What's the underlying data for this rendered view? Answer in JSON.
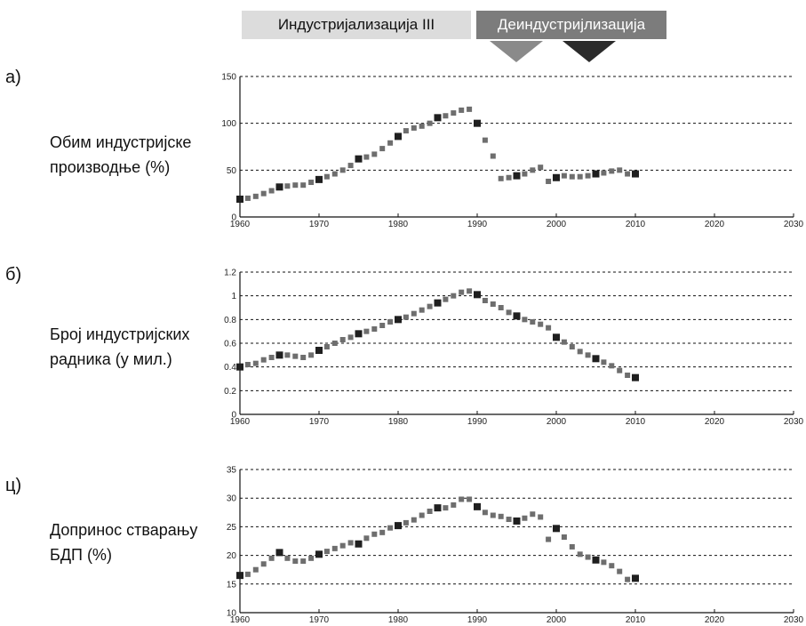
{
  "periods": [
    {
      "label": "Индустријализација III"
    },
    {
      "label": "Деиндустријлизација"
    }
  ],
  "rows": [
    {
      "letter": "а)",
      "line1": "Обим индустријске",
      "line2": "производње (%)"
    },
    {
      "letter": "б)",
      "line1": "Број индустријских",
      "line2": "радника (у мил.)"
    },
    {
      "letter": "ц)",
      "line1": "Допринос стварању",
      "line2": "БДП (%)"
    }
  ],
  "chart_data": [
    {
      "type": "scatter",
      "title": "Обим индустријске производње (%)",
      "xlabel": "",
      "ylabel": "",
      "xlim": [
        1960,
        2030
      ],
      "ylim": [
        0,
        150
      ],
      "xticks": [
        1960,
        1970,
        1980,
        1990,
        2000,
        2010,
        2020,
        2030
      ],
      "yticks": [
        0,
        50,
        100,
        150
      ],
      "grid": true,
      "x": [
        1960,
        1961,
        1962,
        1963,
        1964,
        1965,
        1966,
        1967,
        1968,
        1969,
        1970,
        1971,
        1972,
        1973,
        1974,
        1975,
        1976,
        1977,
        1978,
        1979,
        1980,
        1981,
        1982,
        1983,
        1984,
        1985,
        1986,
        1987,
        1988,
        1989,
        1990,
        1991,
        1992,
        1993,
        1994,
        1995,
        1996,
        1997,
        1998,
        1999,
        2000,
        2001,
        2002,
        2003,
        2004,
        2005,
        2006,
        2007,
        2008,
        2009,
        2010
      ],
      "y": [
        19,
        20,
        22,
        25,
        28,
        32,
        33,
        34,
        34,
        37,
        40,
        43,
        46,
        50,
        55,
        62,
        64,
        67,
        73,
        79,
        86,
        92,
        95,
        97,
        100,
        106,
        108,
        111,
        114,
        115,
        100,
        82,
        65,
        41,
        42,
        44,
        46,
        50,
        53,
        38,
        42,
        44,
        43,
        43,
        44,
        46,
        47,
        49,
        50,
        46,
        46
      ]
    },
    {
      "type": "scatter",
      "title": "Број индустријских радника (у мил.)",
      "xlabel": "",
      "ylabel": "",
      "xlim": [
        1960,
        2030
      ],
      "ylim": [
        0,
        1.2
      ],
      "xticks": [
        1960,
        1970,
        1980,
        1990,
        2000,
        2010,
        2020,
        2030
      ],
      "yticks": [
        0,
        0.2,
        0.4,
        0.6,
        0.8,
        1,
        1.2
      ],
      "grid": true,
      "x": [
        1960,
        1961,
        1962,
        1963,
        1964,
        1965,
        1966,
        1967,
        1968,
        1969,
        1970,
        1971,
        1972,
        1973,
        1974,
        1975,
        1976,
        1977,
        1978,
        1979,
        1980,
        1981,
        1982,
        1983,
        1984,
        1985,
        1986,
        1987,
        1988,
        1989,
        1990,
        1991,
        1992,
        1993,
        1994,
        1995,
        1996,
        1997,
        1998,
        1999,
        2000,
        2001,
        2002,
        2003,
        2004,
        2005,
        2006,
        2007,
        2008,
        2009,
        2010
      ],
      "y": [
        0.4,
        0.42,
        0.43,
        0.46,
        0.48,
        0.5,
        0.5,
        0.49,
        0.48,
        0.5,
        0.54,
        0.57,
        0.6,
        0.63,
        0.65,
        0.68,
        0.7,
        0.72,
        0.75,
        0.78,
        0.8,
        0.82,
        0.85,
        0.88,
        0.91,
        0.94,
        0.97,
        1.0,
        1.03,
        1.04,
        1.01,
        0.96,
        0.93,
        0.9,
        0.86,
        0.83,
        0.8,
        0.78,
        0.76,
        0.73,
        0.65,
        0.61,
        0.57,
        0.53,
        0.5,
        0.47,
        0.44,
        0.41,
        0.37,
        0.33,
        0.31
      ]
    },
    {
      "type": "scatter",
      "title": "Допринос стварању БДП (%)",
      "xlabel": "",
      "ylabel": "",
      "xlim": [
        1960,
        2030
      ],
      "ylim": [
        10,
        35
      ],
      "xticks": [
        1960,
        1970,
        1980,
        1990,
        2000,
        2010,
        2020,
        2030
      ],
      "yticks": [
        10,
        15,
        20,
        25,
        30,
        35
      ],
      "grid": true,
      "x": [
        1960,
        1961,
        1962,
        1963,
        1964,
        1965,
        1966,
        1967,
        1968,
        1969,
        1970,
        1971,
        1972,
        1973,
        1974,
        1975,
        1976,
        1977,
        1978,
        1979,
        1980,
        1981,
        1982,
        1983,
        1984,
        1985,
        1986,
        1987,
        1988,
        1989,
        1990,
        1991,
        1992,
        1993,
        1994,
        1995,
        1996,
        1997,
        1998,
        1999,
        2000,
        2001,
        2002,
        2003,
        2004,
        2005,
        2006,
        2007,
        2008,
        2009,
        2010
      ],
      "y": [
        16.5,
        16.7,
        17.5,
        18.5,
        19.5,
        20.5,
        19.5,
        19.0,
        19.0,
        19.5,
        20.2,
        20.7,
        21.2,
        21.7,
        22.2,
        22.0,
        23.0,
        23.7,
        24.0,
        24.8,
        25.2,
        25.7,
        26.2,
        27.0,
        27.7,
        28.3,
        28.3,
        28.8,
        29.8,
        29.8,
        28.5,
        27.5,
        27.0,
        26.8,
        26.3,
        26.0,
        26.5,
        27.2,
        26.7,
        22.8,
        24.7,
        23.2,
        21.5,
        20.2,
        19.7,
        19.2,
        18.8,
        18.2,
        17.2,
        15.8,
        16.0
      ]
    }
  ]
}
